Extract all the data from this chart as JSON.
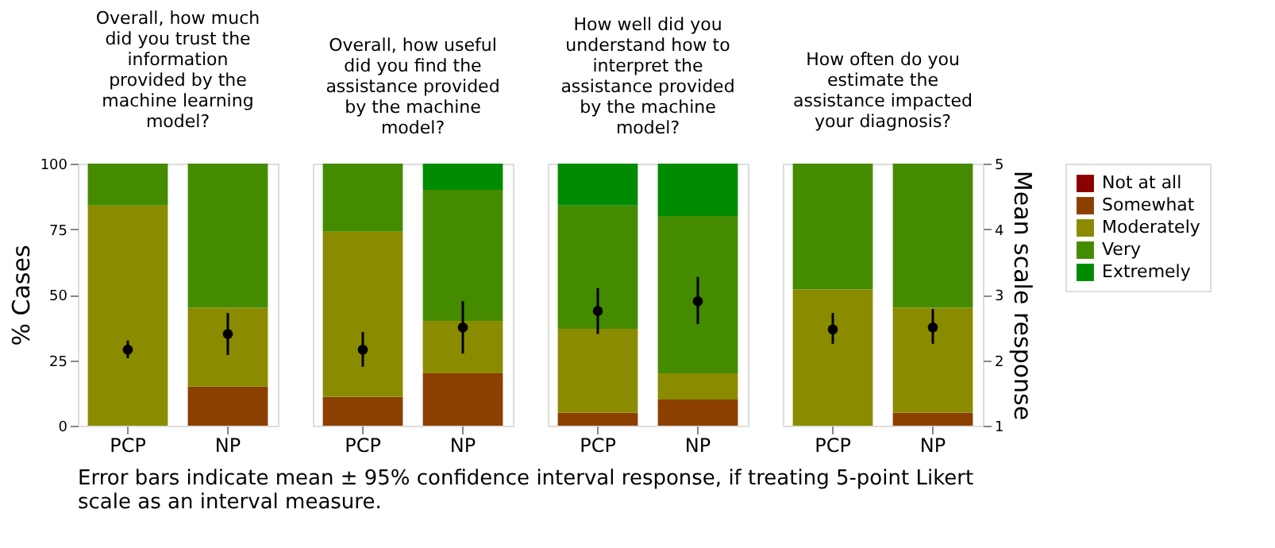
{
  "chart_data": [
    {
      "type": "bar",
      "stacked": true,
      "title": "Overall, how much did you trust the information provided by the machine learning model?",
      "ylabel": "% Cases",
      "categories": [
        "PCP",
        "NP"
      ],
      "ylim": [
        0,
        100
      ],
      "yticks": [
        0,
        25,
        50,
        75,
        100
      ],
      "y2lim": [
        1,
        5
      ],
      "tick_labels": [
        "x",
        "y"
      ],
      "grid": false,
      "legend": false,
      "annotations": [
        "Error bars indicate mean ± 95% confidence interval response, if treating 5-point Likert scale as an interval measure."
      ],
      "series": [
        {
          "color": "#8b4000",
          "values": [
            0,
            15
          ]
        },
        {
          "color": "#8b8b00",
          "values": [
            84,
            30
          ]
        },
        {
          "color": "#458b00",
          "values": [
            16,
            55
          ]
        },
        {
          "type": "scatter",
          "axis": "y2",
          "color": "#000000",
          "marker": "circle",
          "x": [
            "PCP",
            "NP"
          ],
          "values": [
            2.16,
            2.4
          ],
          "errors": [
            [
              2.03,
              2.3
            ],
            [
              2.08,
              2.72
            ]
          ]
        }
      ]
    },
    {
      "type": "bar",
      "stacked": true,
      "title": "Overall, how useful did you find the assistance provided by the machine model?",
      "categories": [
        "PCP",
        "NP"
      ],
      "ylim": [
        0,
        100
      ],
      "y2lim": [
        1,
        5
      ],
      "tick_labels": [
        "x"
      ],
      "grid": false,
      "legend": false,
      "series": [
        {
          "color": "#8b4000",
          "values": [
            11,
            20
          ]
        },
        {
          "color": "#8b8b00",
          "values": [
            63,
            20
          ]
        },
        {
          "color": "#458b00",
          "values": [
            26,
            50
          ]
        },
        {
          "color": "#008b00",
          "values": [
            0,
            10
          ]
        },
        {
          "type": "scatter",
          "axis": "y2",
          "color": "#000000",
          "marker": "circle",
          "x": [
            "PCP",
            "NP"
          ],
          "values": [
            2.16,
            2.5
          ],
          "errors": [
            [
              1.9,
              2.43
            ],
            [
              2.1,
              2.9
            ]
          ]
        }
      ]
    },
    {
      "type": "bar",
      "stacked": true,
      "title": "How well did you understand how to interpret the assistance provided by the machine model?",
      "categories": [
        "PCP",
        "NP"
      ],
      "ylim": [
        0,
        100
      ],
      "y2lim": [
        1,
        5
      ],
      "tick_labels": [
        "x"
      ],
      "grid": false,
      "legend": false,
      "series": [
        {
          "color": "#8b4000",
          "values": [
            5,
            10
          ]
        },
        {
          "color": "#8b8b00",
          "values": [
            32,
            10
          ]
        },
        {
          "color": "#458b00",
          "values": [
            47,
            60
          ]
        },
        {
          "color": "#008b00",
          "values": [
            16,
            20
          ]
        },
        {
          "type": "scatter",
          "axis": "y2",
          "color": "#000000",
          "marker": "circle",
          "x": [
            "PCP",
            "NP"
          ],
          "values": [
            2.75,
            2.9
          ],
          "errors": [
            [
              2.4,
              3.1
            ],
            [
              2.55,
              3.27
            ]
          ]
        }
      ]
    },
    {
      "type": "bar",
      "stacked": true,
      "title": "How often do you estimate the assistance impacted your diagnosis?",
      "y2label": "Mean scale response",
      "categories": [
        "PCP",
        "NP"
      ],
      "ylim": [
        0,
        100
      ],
      "y2lim": [
        1,
        5
      ],
      "y2ticks": [
        1,
        2,
        3,
        4,
        5
      ],
      "tick_labels": [
        "x",
        "y2"
      ],
      "grid": false,
      "legend": "right",
      "series": [
        {
          "name": "Not at all",
          "color": "#8b0000",
          "values": [
            0,
            0
          ]
        },
        {
          "name": "Somewhat",
          "color": "#8b4000",
          "values": [
            0,
            5
          ]
        },
        {
          "name": "Moderately",
          "color": "#8b8b00",
          "values": [
            52,
            40
          ]
        },
        {
          "name": "Very",
          "color": "#458b00",
          "values": [
            48,
            55
          ]
        },
        {
          "name": "Extremely",
          "color": "#008b00",
          "values": [
            0,
            0
          ]
        },
        {
          "type": "scatter",
          "axis": "y2",
          "color": "#000000",
          "marker": "circle",
          "x": [
            "PCP",
            "NP"
          ],
          "values": [
            2.47,
            2.5
          ],
          "errors": [
            [
              2.25,
              2.72
            ],
            [
              2.25,
              2.78
            ]
          ]
        }
      ]
    }
  ]
}
